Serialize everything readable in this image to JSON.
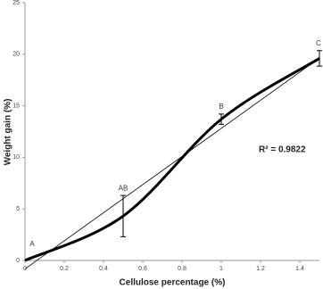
{
  "chart_data": {
    "type": "line",
    "x": [
      0,
      0.5,
      1,
      1.5
    ],
    "series": [
      {
        "values": [
          0,
          4.3,
          13.7,
          19.6
        ],
        "errors": [
          null,
          2,
          0.5,
          0.75
        ],
        "point_labels": [
          "A",
          "AB",
          "B",
          "C"
        ],
        "color": "#000000"
      }
    ],
    "trendline": true,
    "annotation": "R² = 0.9822",
    "xlabel": "Cellulose percentage (%)",
    "ylabel": "Weight gain (%)",
    "xlim": [
      0,
      1.5
    ],
    "xticks": [
      0,
      0.2,
      0.4,
      0.6,
      0.8,
      1,
      1.2,
      1.4
    ],
    "ylim": [
      0,
      25
    ],
    "yticks": [
      0,
      5,
      10,
      15,
      20,
      25
    ],
    "grid": false
  }
}
